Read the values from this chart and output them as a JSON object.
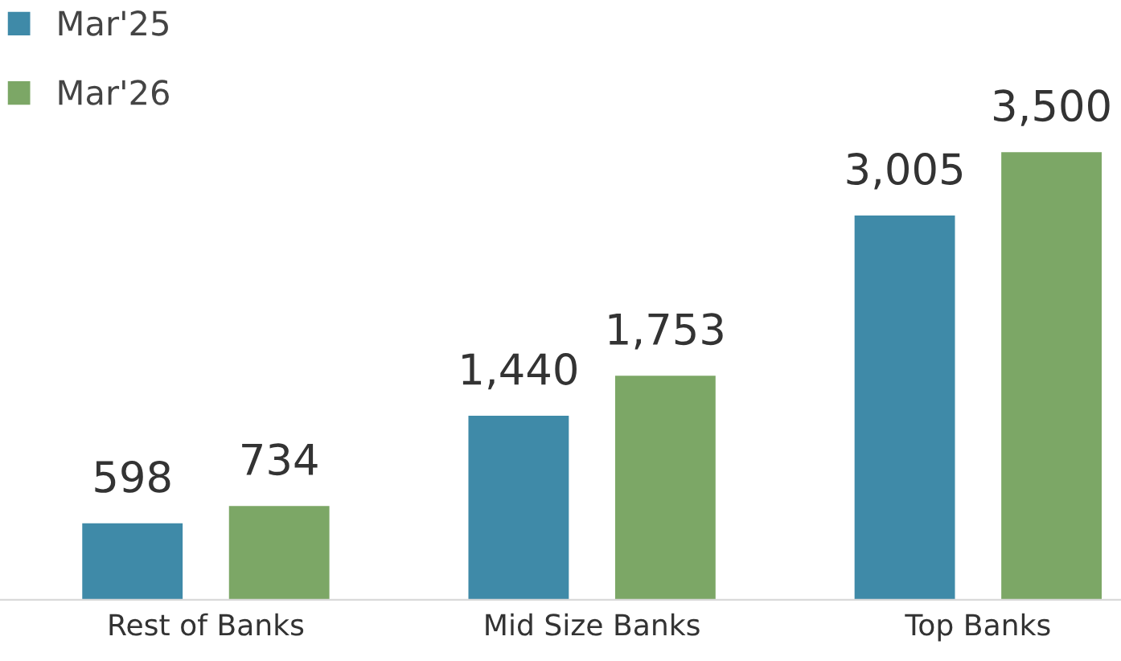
{
  "chart_data": {
    "type": "bar",
    "categories": [
      "Rest of Banks",
      "Mid Size Banks",
      "Top Banks"
    ],
    "series": [
      {
        "name": "Mar'25",
        "color": "#3f8aa8",
        "values": [
          598,
          1440,
          3005
        ],
        "value_labels": [
          "598",
          "1,440",
          "3,005"
        ]
      },
      {
        "name": "Mar'26",
        "color": "#7ca766",
        "values": [
          734,
          1753,
          3500
        ],
        "value_labels": [
          "734",
          "1,753",
          "3,500"
        ]
      }
    ],
    "legend": "top left",
    "grid": false
  }
}
